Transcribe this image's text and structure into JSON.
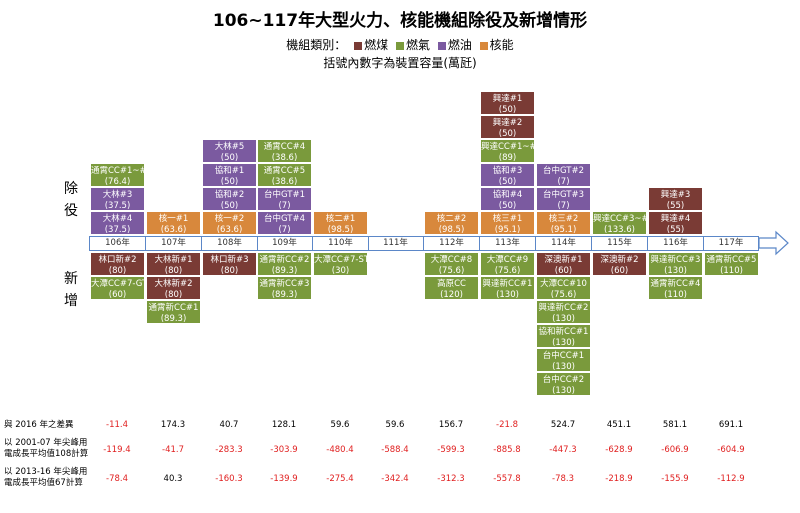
{
  "title": "106~117年大型火力、核能機組除役及新增情形",
  "legend": {
    "prefix": "機組類別：",
    "items": [
      {
        "label": "燃煤",
        "color": "#7a3b35"
      },
      {
        "label": "燃氣",
        "color": "#7a9a3c"
      },
      {
        "label": "燃油",
        "color": "#7b5aa0"
      },
      {
        "label": "核能",
        "color": "#d8883c"
      }
    ]
  },
  "subtitle": "括號內數字為裝置容量(萬瓩)",
  "side_labels": {
    "retire": "除\n役",
    "add": "新\n增"
  },
  "years": [
    "106年",
    "107年",
    "108年",
    "109年",
    "110年",
    "111年",
    "112年",
    "113年",
    "114年",
    "115年",
    "116年",
    "117年"
  ],
  "retire": [
    [
      {
        "name": "大林#4",
        "cap": "(37.5)",
        "type": "oil"
      },
      {
        "name": "大林#3",
        "cap": "(37.5)",
        "type": "oil"
      },
      {
        "name": "通霄CC#1~#3",
        "cap": "(76.4)",
        "type": "gas"
      }
    ],
    [
      {
        "name": "核一#1",
        "cap": "(63.6)",
        "type": "nuc"
      }
    ],
    [
      {
        "name": "核一#2",
        "cap": "(63.6)",
        "type": "nuc"
      },
      {
        "name": "協和#2",
        "cap": "(50)",
        "type": "oil"
      },
      {
        "name": "協和#1",
        "cap": "(50)",
        "type": "oil"
      },
      {
        "name": "大林#5",
        "cap": "(50)",
        "type": "oil"
      }
    ],
    [
      {
        "name": "台中GT#4",
        "cap": "(7)",
        "type": "oil"
      },
      {
        "name": "台中GT#1",
        "cap": "(7)",
        "type": "oil"
      },
      {
        "name": "通霄CC#5",
        "cap": "(38.6)",
        "type": "gas"
      },
      {
        "name": "通霄CC#4",
        "cap": "(38.6)",
        "type": "gas"
      }
    ],
    [
      {
        "name": "核二#1",
        "cap": "(98.5)",
        "type": "nuc"
      }
    ],
    [],
    [
      {
        "name": "核二#2",
        "cap": "(98.5)",
        "type": "nuc"
      }
    ],
    [
      {
        "name": "核三#1",
        "cap": "(95.1)",
        "type": "nuc"
      },
      {
        "name": "協和#4",
        "cap": "(50)",
        "type": "oil"
      },
      {
        "name": "協和#3",
        "cap": "(50)",
        "type": "oil"
      },
      {
        "name": "興達CC#1~#2",
        "cap": "(89)",
        "type": "gas"
      },
      {
        "name": "興達#2",
        "cap": "(50)",
        "type": "coal"
      },
      {
        "name": "興達#1",
        "cap": "(50)",
        "type": "coal"
      }
    ],
    [
      {
        "name": "核三#2",
        "cap": "(95.1)",
        "type": "nuc"
      },
      {
        "name": "台中GT#3",
        "cap": "(7)",
        "type": "oil"
      },
      {
        "name": "台中GT#2",
        "cap": "(7)",
        "type": "oil"
      }
    ],
    [
      {
        "name": "興達CC#3~#5",
        "cap": "(133.6)",
        "type": "gas"
      }
    ],
    [
      {
        "name": "興達#4",
        "cap": "(55)",
        "type": "coal"
      },
      {
        "name": "興達#3",
        "cap": "(55)",
        "type": "coal"
      }
    ],
    []
  ],
  "add": [
    [
      {
        "name": "林口新#2",
        "cap": "(80)",
        "type": "coal"
      },
      {
        "name": "大潭CC#7-GT",
        "cap": "(60)",
        "type": "gas"
      }
    ],
    [
      {
        "name": "大林新#1",
        "cap": "(80)",
        "type": "coal"
      },
      {
        "name": "大林新#2",
        "cap": "(80)",
        "type": "coal"
      },
      {
        "name": "通霄新CC#1",
        "cap": "(89.3)",
        "type": "gas"
      }
    ],
    [
      {
        "name": "林口新#3",
        "cap": "(80)",
        "type": "coal"
      }
    ],
    [
      {
        "name": "通霄新CC#2",
        "cap": "(89.3)",
        "type": "gas"
      },
      {
        "name": "通霄新CC#3",
        "cap": "(89.3)",
        "type": "gas"
      }
    ],
    [
      {
        "name": "大潭CC#7-ST",
        "cap": "(30)",
        "type": "gas"
      }
    ],
    [],
    [
      {
        "name": "大潭CC#8",
        "cap": "(75.6)",
        "type": "gas"
      },
      {
        "name": "高原CC",
        "cap": "(120)",
        "type": "gas"
      }
    ],
    [
      {
        "name": "大潭CC#9",
        "cap": "(75.6)",
        "type": "gas"
      },
      {
        "name": "興達新CC#1",
        "cap": "(130)",
        "type": "gas"
      }
    ],
    [
      {
        "name": "深澳新#1",
        "cap": "(60)",
        "type": "coal"
      },
      {
        "name": "大潭CC#10",
        "cap": "(75.6)",
        "type": "gas"
      },
      {
        "name": "興達新CC#2",
        "cap": "(130)",
        "type": "gas"
      },
      {
        "name": "協和新CC#1",
        "cap": "(130)",
        "type": "gas"
      },
      {
        "name": "台中CC#1",
        "cap": "(130)",
        "type": "gas"
      },
      {
        "name": "台中CC#2",
        "cap": "(130)",
        "type": "gas"
      }
    ],
    [
      {
        "name": "深澳新#2",
        "cap": "(60)",
        "type": "coal"
      }
    ],
    [
      {
        "name": "興達新CC#3",
        "cap": "(130)",
        "type": "gas"
      },
      {
        "name": "通霄新CC#4",
        "cap": "(110)",
        "type": "gas"
      }
    ],
    [
      {
        "name": "通霄新CC#5",
        "cap": "(110)",
        "type": "gas"
      }
    ]
  ],
  "bottom_rows": [
    {
      "label": "與 2016 年之差異",
      "values": [
        "-11.4",
        "174.3",
        "40.7",
        "128.1",
        "59.6",
        "59.6",
        "156.7",
        "-21.8",
        "524.7",
        "451.1",
        "581.1",
        "691.1"
      ]
    },
    {
      "label": "以 2001-07 年尖峰用\n電成長平均值108計算",
      "values": [
        "-119.4",
        "-41.7",
        "-283.3",
        "-303.9",
        "-480.4",
        "-588.4",
        "-599.3",
        "-885.8",
        "-447.3",
        "-628.9",
        "-606.9",
        "-604.9"
      ]
    },
    {
      "label": "以 2013-16 年尖峰用\n電成長平均值67計算",
      "values": [
        "-78.4",
        "40.3",
        "-160.3",
        "-139.9",
        "-275.4",
        "-342.4",
        "-312.3",
        "-557.8",
        "-78.3",
        "-218.9",
        "-155.9",
        "-112.9"
      ]
    }
  ],
  "colors": {
    "coal": "#7a3b35",
    "gas": "#7a9a3c",
    "oil": "#7b5aa0",
    "nuc": "#d8883c",
    "negative": "#e02020",
    "positive": "#000000",
    "axis": "#5b87c8"
  }
}
